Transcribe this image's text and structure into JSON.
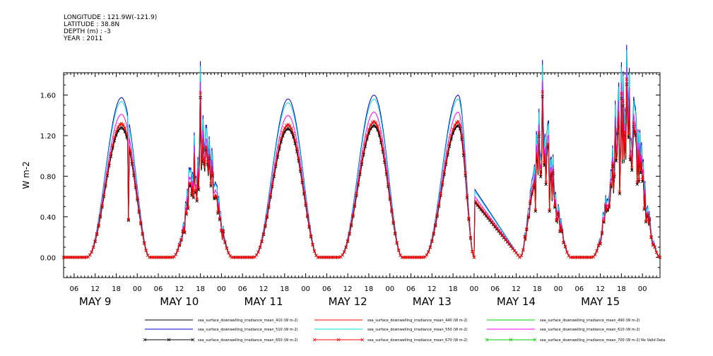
{
  "header": {
    "longitude": "LONGITUDE : 121.9W(-121.9)",
    "latitude": "LATITUDE : 38.8N",
    "depth": "DEPTH (m) : -3",
    "year": "YEAR : 2011"
  },
  "chart_data": {
    "type": "line",
    "ylabel": "W m-2",
    "ylim": [
      -0.2,
      1.82
    ],
    "yticks": [
      "0.00",
      "0.40",
      "0.80",
      "1.20",
      "1.60"
    ],
    "ytick_values": [
      0.0,
      0.4,
      0.8,
      1.2,
      1.6
    ],
    "x_start_hour": 3,
    "x_end_hour": 173,
    "hour_tick_labels": [
      "06",
      "12",
      "18",
      "00",
      "06",
      "12",
      "18",
      "00",
      "06",
      "12",
      "18",
      "00",
      "06",
      "12",
      "18",
      "00",
      "06",
      "12",
      "18",
      "00",
      "06",
      "12",
      "18",
      "00",
      "06",
      "12",
      "18",
      "00"
    ],
    "hour_tick_values": [
      6,
      12,
      18,
      24,
      30,
      36,
      42,
      48,
      54,
      60,
      66,
      72,
      78,
      84,
      90,
      96,
      102,
      108,
      114,
      120,
      126,
      132,
      138,
      144,
      150,
      156,
      162,
      168
    ],
    "day_labels": [
      "MAY   9",
      "MAY 10",
      "MAY 11",
      "MAY 12",
      "MAY 13",
      "MAY 14",
      "MAY 15"
    ],
    "day_label_hours": [
      12,
      36,
      60,
      84,
      108,
      132,
      156
    ],
    "gap_segment": {
      "from_hour": 120,
      "to_hour": 133
    },
    "days": [
      {
        "day": "MAY 9",
        "start_hour": 9.5,
        "peak_hour": 19.5,
        "end_hour": 27.5,
        "peak_black": 1.27,
        "noisy": false,
        "spikes": [
          [
            21.5,
            0.36
          ]
        ]
      },
      {
        "day": "MAY 10",
        "start_hour": 34,
        "peak_hour": 42,
        "end_hour": 51,
        "peak_black": 1.0,
        "noisy": true,
        "spikes": [
          [
            42.0,
            1.56
          ],
          [
            41.0,
            0.55
          ],
          [
            43.5,
            1.05
          ]
        ]
      },
      {
        "day": "MAY 11",
        "start_hour": 57,
        "peak_hour": 67,
        "end_hour": 75.5,
        "peak_black": 1.26,
        "noisy": false,
        "spikes": []
      },
      {
        "day": "MAY 12",
        "start_hour": 81.5,
        "peak_hour": 91.5,
        "end_hour": 99.5,
        "peak_black": 1.29,
        "noisy": false,
        "spikes": []
      },
      {
        "day": "MAY 13",
        "start_hour": 105.5,
        "peak_hour": 115.5,
        "end_hour": 120,
        "peak_black": 1.29,
        "noisy": false,
        "spikes": []
      },
      {
        "day": "MAY 14",
        "start_hour": 133,
        "peak_hour": 138.5,
        "end_hour": 147.5,
        "peak_black": 1.15,
        "noisy": true,
        "spikes": [
          [
            137.5,
            0.45
          ],
          [
            141.5,
            0.45
          ],
          [
            139.5,
            1.57
          ]
        ]
      },
      {
        "day": "MAY 15",
        "start_hour": 153.5,
        "peak_hour": 163,
        "end_hour": 173,
        "peak_black": 1.35,
        "noisy": true,
        "spikes": [
          [
            163.5,
            1.69
          ],
          [
            161.5,
            0.62
          ],
          [
            165,
            0.85
          ]
        ]
      }
    ],
    "series": [
      {
        "name": "sea_surface_downwelling_irradiance_mean_410 (W m-2)",
        "color": "#000000",
        "scale": 1.0,
        "marker": false
      },
      {
        "name": "sea_surface_downwelling_irradiance_mean_440 (W m-2)",
        "color": "#ff0000",
        "scale": 1.03,
        "marker": false
      },
      {
        "name": "sea_surface_downwelling_irradiance_mean_490 (W m-2)",
        "color": "#00cc00",
        "scale": 1.01,
        "marker": false
      },
      {
        "name": "sea_surface_downwelling_irradiance_mean_510 (W m-2)",
        "color": "#0000cc",
        "scale": 1.24,
        "marker": false
      },
      {
        "name": "sea_surface_downwelling_irradiance_mean_550 (W m-2)",
        "color": "#00e0e0",
        "scale": 1.21,
        "marker": false
      },
      {
        "name": "sea_surface_downwelling_irradiance_mean_610 (W m-2)",
        "color": "#ff00ff",
        "scale": 1.11,
        "marker": false
      },
      {
        "name": "sea_surface_downwelling_irradiance_mean_650 (W m-2)",
        "color": "#000000",
        "scale": 1.01,
        "marker": true
      },
      {
        "name": "sea_surface_downwelling_irradiance_mean_670 (W m-2)",
        "color": "#ff0000",
        "scale": 1.04,
        "marker": true
      },
      {
        "name": "sea_surface_downwelling_irradiance_mean_700 (W m-2) No Valid Data",
        "color": "#00cc00",
        "scale": 0,
        "marker": true
      }
    ]
  }
}
